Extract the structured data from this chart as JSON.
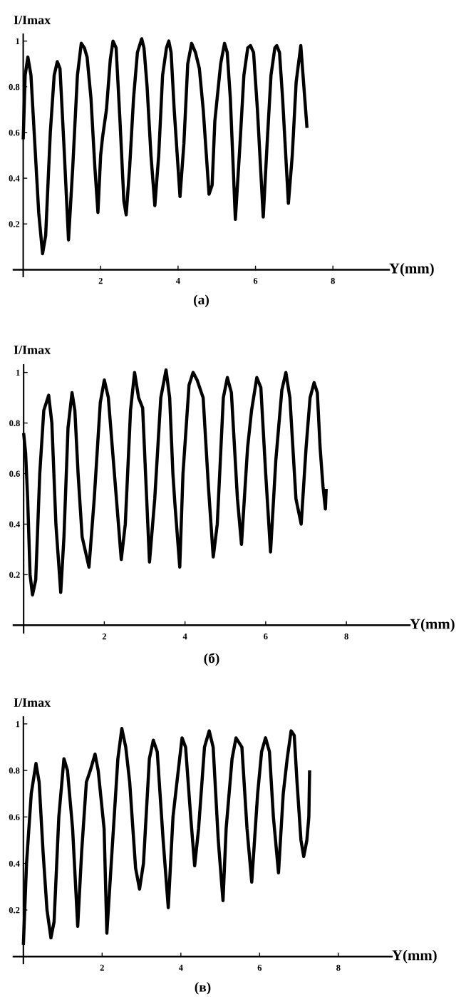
{
  "chart_data": [
    {
      "type": "line",
      "ylabel": "I/Imax",
      "xlabel": "Y(mm)",
      "annotations": [
        "(a)"
      ],
      "xlim": [
        -0.25,
        9.45
      ],
      "ylim": [
        -0.03,
        1.03
      ],
      "xticks": [
        2,
        4,
        6,
        8
      ],
      "yticks": [
        0.2,
        0.4,
        0.6,
        0.8,
        1
      ],
      "grid": false,
      "legend": false,
      "series": [
        {
          "color": "#000000",
          "x": [
            0,
            0.05,
            0.12,
            0.2,
            0.3,
            0.4,
            0.5,
            0.58,
            0.7,
            0.8,
            0.88,
            0.95,
            1.05,
            1.17,
            1.28,
            1.4,
            1.5,
            1.58,
            1.65,
            1.75,
            1.85,
            1.93,
            2.0,
            2.05,
            2.15,
            2.25,
            2.32,
            2.4,
            2.5,
            2.6,
            2.66,
            2.75,
            2.85,
            2.95,
            3.06,
            3.12,
            3.2,
            3.3,
            3.4,
            3.5,
            3.6,
            3.7,
            3.76,
            3.82,
            3.9,
            4.05,
            4.15,
            4.25,
            4.35,
            4.45,
            4.55,
            4.65,
            4.8,
            4.88,
            4.95,
            5.1,
            5.2,
            5.27,
            5.35,
            5.48,
            5.6,
            5.7,
            5.8,
            5.87,
            5.95,
            6.05,
            6.2,
            6.3,
            6.4,
            6.5,
            6.55,
            6.62,
            6.7,
            6.85,
            6.95,
            7.05,
            7.17,
            7.25,
            7.33
          ],
          "values": [
            0.57,
            0.85,
            0.93,
            0.85,
            0.55,
            0.25,
            0.07,
            0.15,
            0.6,
            0.85,
            0.91,
            0.88,
            0.55,
            0.13,
            0.45,
            0.85,
            0.99,
            0.97,
            0.93,
            0.75,
            0.45,
            0.25,
            0.5,
            0.58,
            0.7,
            0.92,
            1.0,
            0.97,
            0.65,
            0.3,
            0.24,
            0.45,
            0.75,
            0.95,
            1.01,
            0.97,
            0.8,
            0.5,
            0.28,
            0.5,
            0.85,
            0.97,
            1.0,
            0.95,
            0.7,
            0.32,
            0.55,
            0.9,
            0.99,
            0.95,
            0.88,
            0.7,
            0.33,
            0.37,
            0.65,
            0.9,
            0.99,
            0.95,
            0.75,
            0.22,
            0.55,
            0.85,
            0.97,
            0.98,
            0.95,
            0.7,
            0.23,
            0.55,
            0.85,
            0.97,
            0.98,
            0.95,
            0.75,
            0.29,
            0.5,
            0.82,
            0.98,
            0.8,
            0.62
          ]
        }
      ]
    },
    {
      "type": "line",
      "ylabel": "I/Imax",
      "xlabel": "Y(mm)",
      "annotations": [
        "(б)"
      ],
      "xlim": [
        -0.25,
        9.57
      ],
      "ylim": [
        -0.03,
        1.03
      ],
      "xticks": [
        2,
        4,
        6,
        8
      ],
      "yticks": [
        0.2,
        0.4,
        0.6,
        0.8,
        1
      ],
      "grid": false,
      "legend": false,
      "series": [
        {
          "color": "#000000",
          "x": [
            0,
            0.05,
            0.1,
            0.16,
            0.22,
            0.3,
            0.4,
            0.5,
            0.62,
            0.7,
            0.8,
            0.92,
            1.0,
            1.1,
            1.2,
            1.27,
            1.35,
            1.45,
            1.62,
            1.75,
            1.9,
            2.0,
            2.1,
            2.25,
            2.42,
            2.52,
            2.65,
            2.75,
            2.85,
            2.95,
            3.05,
            3.12,
            3.25,
            3.4,
            3.53,
            3.62,
            3.7,
            3.75,
            3.87,
            3.95,
            4.1,
            4.2,
            4.3,
            4.45,
            4.58,
            4.7,
            4.8,
            4.95,
            5.05,
            5.15,
            5.3,
            5.4,
            5.55,
            5.65,
            5.78,
            5.88,
            6.0,
            6.12,
            6.25,
            6.4,
            6.5,
            6.6,
            6.75,
            6.88,
            7.0,
            7.1,
            7.2,
            7.28,
            7.35,
            7.42,
            7.48,
            7.5
          ],
          "values": [
            0.76,
            0.68,
            0.5,
            0.2,
            0.12,
            0.18,
            0.6,
            0.85,
            0.91,
            0.8,
            0.4,
            0.13,
            0.35,
            0.78,
            0.92,
            0.85,
            0.6,
            0.35,
            0.23,
            0.5,
            0.88,
            0.97,
            0.9,
            0.6,
            0.26,
            0.4,
            0.85,
            1.0,
            0.9,
            0.86,
            0.5,
            0.25,
            0.5,
            0.9,
            1.01,
            0.9,
            0.6,
            0.48,
            0.23,
            0.6,
            0.95,
            1.0,
            0.97,
            0.9,
            0.55,
            0.27,
            0.4,
            0.9,
            0.98,
            0.92,
            0.5,
            0.32,
            0.7,
            0.85,
            0.98,
            0.94,
            0.6,
            0.29,
            0.65,
            0.93,
            1.0,
            0.9,
            0.5,
            0.4,
            0.7,
            0.9,
            0.96,
            0.92,
            0.7,
            0.55,
            0.46,
            0.54
          ]
        }
      ]
    },
    {
      "type": "line",
      "ylabel": "I/Imax",
      "xlabel": "Y(mm)",
      "annotations": [
        "(в)"
      ],
      "xlim": [
        -0.25,
        9.36
      ],
      "ylim": [
        -0.03,
        1.03
      ],
      "xticks": [
        2,
        4,
        6,
        8
      ],
      "yticks": [
        0.2,
        0.4,
        0.6,
        0.8,
        1
      ],
      "grid": false,
      "legend": false,
      "series": [
        {
          "color": "#000000",
          "x": [
            0,
            0.08,
            0.2,
            0.32,
            0.4,
            0.5,
            0.6,
            0.7,
            0.78,
            0.9,
            1.03,
            1.12,
            1.25,
            1.38,
            1.48,
            1.6,
            1.7,
            1.82,
            1.9,
            2.05,
            2.12,
            2.25,
            2.4,
            2.5,
            2.6,
            2.7,
            2.85,
            2.95,
            3.05,
            3.2,
            3.3,
            3.4,
            3.55,
            3.68,
            3.8,
            3.9,
            4.03,
            4.12,
            4.25,
            4.35,
            4.45,
            4.6,
            4.72,
            4.82,
            4.95,
            5.07,
            5.15,
            5.3,
            5.4,
            5.55,
            5.68,
            5.8,
            5.95,
            6.05,
            6.15,
            6.25,
            6.35,
            6.48,
            6.6,
            6.7,
            6.8,
            6.88,
            6.95,
            7.05,
            7.12,
            7.2,
            7.25,
            7.27
          ],
          "values": [
            0.05,
            0.4,
            0.7,
            0.83,
            0.75,
            0.45,
            0.2,
            0.08,
            0.15,
            0.6,
            0.85,
            0.8,
            0.55,
            0.13,
            0.45,
            0.75,
            0.8,
            0.87,
            0.8,
            0.55,
            0.1,
            0.45,
            0.85,
            0.98,
            0.9,
            0.75,
            0.38,
            0.29,
            0.4,
            0.85,
            0.93,
            0.88,
            0.5,
            0.21,
            0.6,
            0.75,
            0.94,
            0.9,
            0.6,
            0.39,
            0.55,
            0.9,
            0.97,
            0.9,
            0.5,
            0.24,
            0.55,
            0.85,
            0.94,
            0.9,
            0.55,
            0.32,
            0.7,
            0.88,
            0.94,
            0.88,
            0.6,
            0.36,
            0.7,
            0.85,
            0.97,
            0.95,
            0.75,
            0.5,
            0.43,
            0.5,
            0.6,
            0.8
          ]
        }
      ]
    }
  ]
}
